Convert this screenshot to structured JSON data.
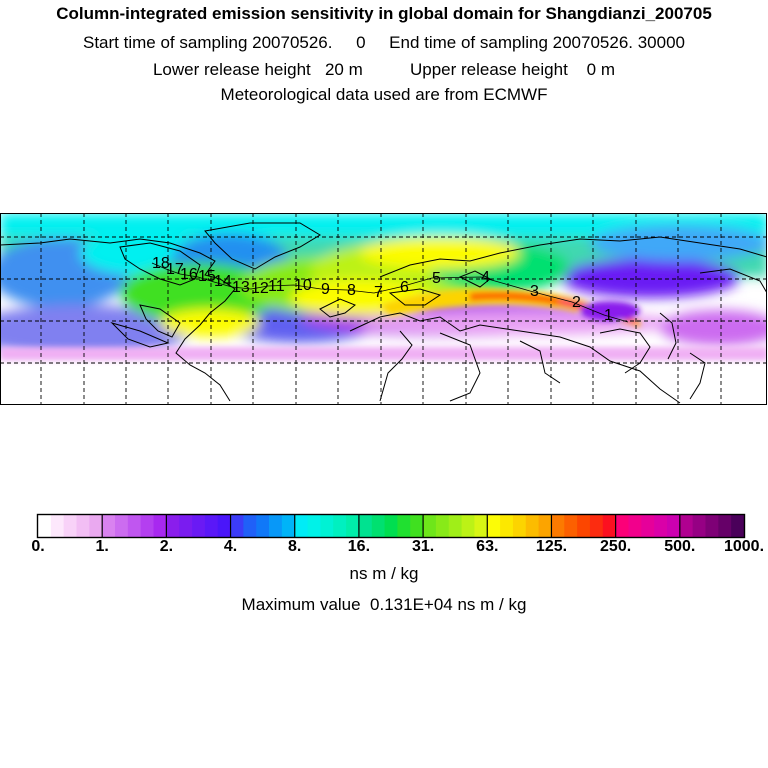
{
  "header": {
    "title": "Column-integrated emission sensitivity in global domain for Shangdianzi_200705",
    "line1": "Start time of sampling 20070526.     0     End time of sampling 20070526. 30000",
    "line2": "Lower release height   20 m          Upper release height    0 m",
    "line3": "Meteorological data used are from ECMWF"
  },
  "map": {
    "numbers": [
      "1",
      "2",
      "3",
      "4",
      "5",
      "6",
      "7",
      "8",
      "9",
      "10",
      "11",
      "12",
      "13",
      "14",
      "15",
      "16",
      "17",
      "18"
    ]
  },
  "colorbar": {
    "ticks": [
      "0.",
      "1.",
      "2.",
      "4.",
      "8.",
      "16.",
      "31.",
      "63.",
      "125.",
      "250.",
      "500.",
      "1000."
    ],
    "colors": [
      "#ffffff",
      "#fde8fc",
      "#f8d2f8",
      "#f2bef4",
      "#eaa9f0",
      "#d982f0",
      "#cc6cf0",
      "#c056f0",
      "#b43ff0",
      "#a828f0",
      "#8a1eec",
      "#7a1cf0",
      "#6a1af4",
      "#5a18f8",
      "#4a16fa",
      "#3c3cf8",
      "#2060f8",
      "#1078f8",
      "#0898f8",
      "#00b4f8",
      "#00ecf6",
      "#00f2e8",
      "#00f2d4",
      "#00f0c0",
      "#00eeaa",
      "#00e290",
      "#00e070",
      "#00de50",
      "#20e030",
      "#40e020",
      "#6ee61a",
      "#88ea18",
      "#a0ee18",
      "#bcf216",
      "#d8f614",
      "#fcfc06",
      "#fce800",
      "#fcd400",
      "#fcbc00",
      "#fca400",
      "#fc7a00",
      "#fc6000",
      "#fc4600",
      "#fc2c10",
      "#fc1020",
      "#fc0078",
      "#f2008c",
      "#e6009a",
      "#da00a8",
      "#cc00b0",
      "#b00090",
      "#960084",
      "#7e0076",
      "#660068",
      "#4a005a"
    ],
    "units": "ns m / kg",
    "max_value_text": "Maximum value  0.131E+04 ns m / kg"
  }
}
